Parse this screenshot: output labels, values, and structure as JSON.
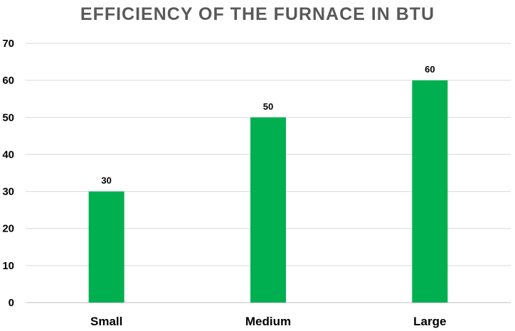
{
  "chart_data": {
    "type": "bar",
    "title": "EFFICIENCY OF THE FURNACE IN BTU",
    "categories": [
      "Small",
      "Medium",
      "Large"
    ],
    "values": [
      30,
      50,
      60
    ],
    "xlabel": "",
    "ylabel": "",
    "ylim": [
      0,
      70
    ],
    "yticks": [
      0,
      10,
      20,
      30,
      40,
      50,
      60,
      70
    ],
    "grid": true,
    "legend": "none",
    "data_labels": true
  },
  "colors": {
    "bar": "#00b050",
    "grid": "#d9d9d9",
    "axis": "#bfbfbf",
    "title": "#595959"
  }
}
